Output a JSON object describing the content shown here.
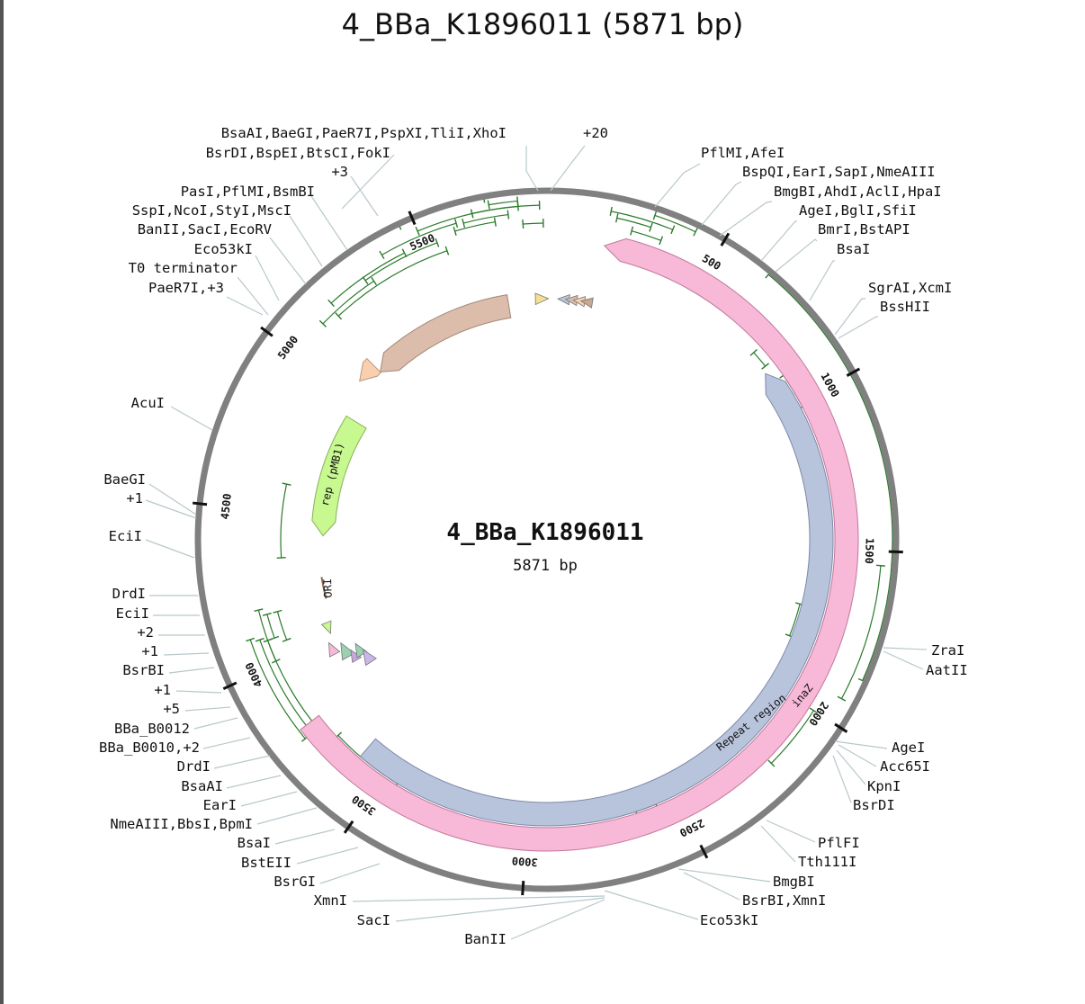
{
  "title": "4_BBa_K1896011 (5871 bp)",
  "plasmid": {
    "name": "4_BBa_K1896011",
    "length_label": "5871 bp",
    "length": 5871
  },
  "ticks": [
    "500",
    "1000",
    "1500",
    "2000",
    "2500",
    "3000",
    "3500",
    "4000",
    "4500",
    "5000",
    "5500"
  ],
  "features": {
    "ori": "ORI",
    "rep": "rep (pMB1)",
    "repeat": "Repeat region",
    "inaz": "inaZ"
  },
  "sites_right": [
    "+20",
    "PflMI,AfeI",
    "BspQI,EarI,SapI,NmeAIII",
    "BmgBI,AhdI,AclI,HpaI",
    "AgeI,BglI,SfiI",
    "BmrI,BstAPI",
    "BsaI",
    "SgrAI,XcmI",
    "BssHII",
    "ZraI",
    "AatII",
    "AgeI",
    "Acc65I",
    "KpnI",
    "BsrDI",
    "PflFI",
    "Tth111I",
    "BmgBI",
    "BsrBI,XmnI",
    "Eco53kI"
  ],
  "sites_left": [
    "BsaAI,BaeGI,PaeR7I,PspXI,TliI,XhoI",
    "BsrDI,BspEI,BtsCI,FokI",
    "+3",
    "PasI,PflMI,BsmBI",
    "SspI,NcoI,StyI,MscI",
    "BanII,SacI,EcoRV",
    "Eco53kI",
    "T0 terminator",
    "PaeR7I,+3",
    "AcuI",
    "BaeGI",
    "+1",
    "EciI",
    "DrdI",
    "EciI",
    "+2",
    "+1",
    "BsrBI",
    "+1",
    "+5",
    "BBa_B0012",
    "BBa_B0010,+2",
    "DrdI",
    "BsaAI",
    "EarI",
    "NmeAIII,BbsI,BpmI",
    "BsaI",
    "BstEII",
    "BsrGI",
    "XmnI",
    "SacI",
    "BanII"
  ],
  "colors": {
    "backbone": "#808080",
    "inaz": "#f8b8d8",
    "repeat": "#b8c4dc",
    "rep": "#c8f890",
    "orf_tan": "#dcbcaa",
    "orf_peach": "#f8d0b0",
    "primer": "#2a7a2a",
    "leader": "#b8c8cc"
  }
}
